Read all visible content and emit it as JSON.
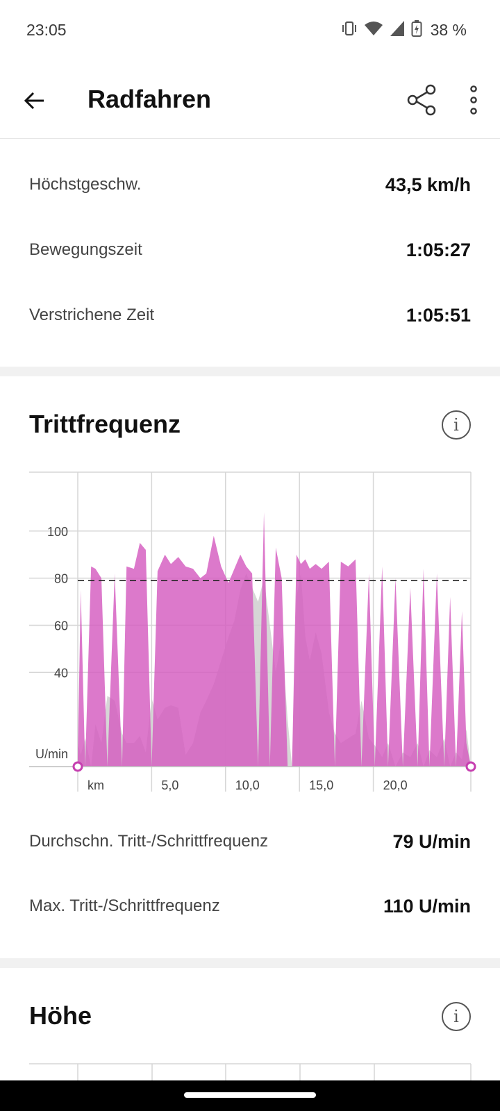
{
  "status": {
    "time": "23:05",
    "battery": "38 %"
  },
  "header": {
    "title": "Radfahren"
  },
  "stats": [
    {
      "label": "Höchstgeschw.",
      "value": "43,5 km/h"
    },
    {
      "label": "Bewegungszeit",
      "value": "1:05:27"
    },
    {
      "label": "Verstrichene Zeit",
      "value": "1:05:51"
    }
  ],
  "cadence": {
    "title": "Trittfrequenz",
    "summary": [
      {
        "label": "Durchschn. Tritt-/Schrittfrequenz",
        "value": "79 U/min"
      },
      {
        "label": "Max. Tritt-/Schrittfrequenz",
        "value": "110 U/min"
      }
    ]
  },
  "elevation": {
    "title": "Höhe"
  },
  "colors": {
    "cadence_fill": "#d45cbf",
    "elevation_fill": "#cfcfcf",
    "accent": "#c63fb0"
  },
  "chart_data": {
    "type": "area",
    "ylabel": "U/min",
    "xlabel": "km",
    "ylim": [
      0,
      125
    ],
    "xlim": [
      0,
      26.6
    ],
    "yticks": [
      {
        "value": 40,
        "label": "40"
      },
      {
        "value": 60,
        "label": "60"
      },
      {
        "value": 80,
        "label": "80"
      },
      {
        "value": 100,
        "label": "100"
      }
    ],
    "xticks": [
      {
        "value": 5,
        "label": "5,0"
      },
      {
        "value": 10,
        "label": "10,0"
      },
      {
        "value": 15,
        "label": "15,0"
      },
      {
        "value": 20,
        "label": "20,0"
      }
    ],
    "average_line": 79,
    "series": [
      {
        "x": [
          0,
          0.2,
          0.5,
          0.9,
          1.2,
          1.6,
          2.0,
          2.5,
          3.0,
          3.3,
          3.8,
          4.2,
          4.6,
          5.0,
          5.4,
          5.9,
          6.3,
          6.8,
          7.3,
          7.8,
          8.3,
          8.7,
          9.2,
          9.7,
          10.2,
          10.6,
          11.0,
          11.4,
          11.8,
          12.2,
          12.6,
          13.0,
          13.4,
          13.8,
          14.2,
          14.5,
          14.8,
          15.1,
          15.4,
          15.7,
          16.1,
          16.5,
          17.0,
          17.4,
          17.8,
          18.3,
          18.8,
          19.2,
          19.7,
          20.1,
          20.6,
          21.0,
          21.5,
          22.0,
          22.5,
          23.0,
          23.4,
          23.8,
          24.3,
          24.8,
          25.2,
          25.6,
          26.0,
          26.3,
          26.6
        ],
        "y": [
          10,
          5,
          12,
          0,
          18,
          10,
          30,
          28,
          14,
          10,
          10,
          13,
          6,
          29,
          20,
          25,
          26,
          25,
          5,
          10,
          23,
          28,
          35,
          45,
          55,
          62,
          75,
          82,
          76,
          70,
          80,
          60,
          40,
          55,
          20,
          0,
          72,
          82,
          55,
          45,
          57,
          48,
          23,
          14,
          10,
          12,
          14,
          28,
          12,
          9,
          4,
          10,
          0,
          6,
          4,
          10,
          0,
          7,
          4,
          12,
          0,
          6,
          3,
          16,
          0
        ]
      },
      {
        "x": [
          0,
          0.2,
          0.5,
          0.9,
          1.2,
          1.6,
          2.0,
          2.5,
          3.0,
          3.3,
          3.8,
          4.2,
          4.6,
          5.0,
          5.4,
          5.9,
          6.3,
          6.8,
          7.3,
          7.8,
          8.3,
          8.7,
          9.2,
          9.7,
          10.2,
          10.6,
          11.0,
          11.4,
          11.8,
          12.2,
          12.6,
          13.0,
          13.4,
          13.8,
          14.2,
          14.5,
          14.8,
          15.1,
          15.4,
          15.7,
          16.1,
          16.5,
          17.0,
          17.4,
          17.8,
          18.3,
          18.8,
          19.2,
          19.7,
          20.1,
          20.6,
          21.0,
          21.5,
          22.0,
          22.5,
          23.0,
          23.4,
          23.8,
          24.3,
          24.8,
          25.2,
          25.6,
          26.0,
          26.3,
          26.6
        ],
        "y": [
          4,
          75,
          0,
          85,
          84,
          80,
          0,
          82,
          0,
          85,
          84,
          95,
          92,
          0,
          83,
          90,
          86,
          89,
          85,
          84,
          80,
          82,
          98,
          85,
          78,
          84,
          90,
          85,
          82,
          0,
          108,
          0,
          93,
          80,
          0,
          0,
          90,
          86,
          88,
          84,
          86,
          84,
          87,
          0,
          87,
          85,
          88,
          0,
          82,
          0,
          85,
          0,
          80,
          0,
          76,
          0,
          84,
          0,
          82,
          0,
          72,
          0,
          66,
          10,
          0
        ]
      }
    ]
  }
}
